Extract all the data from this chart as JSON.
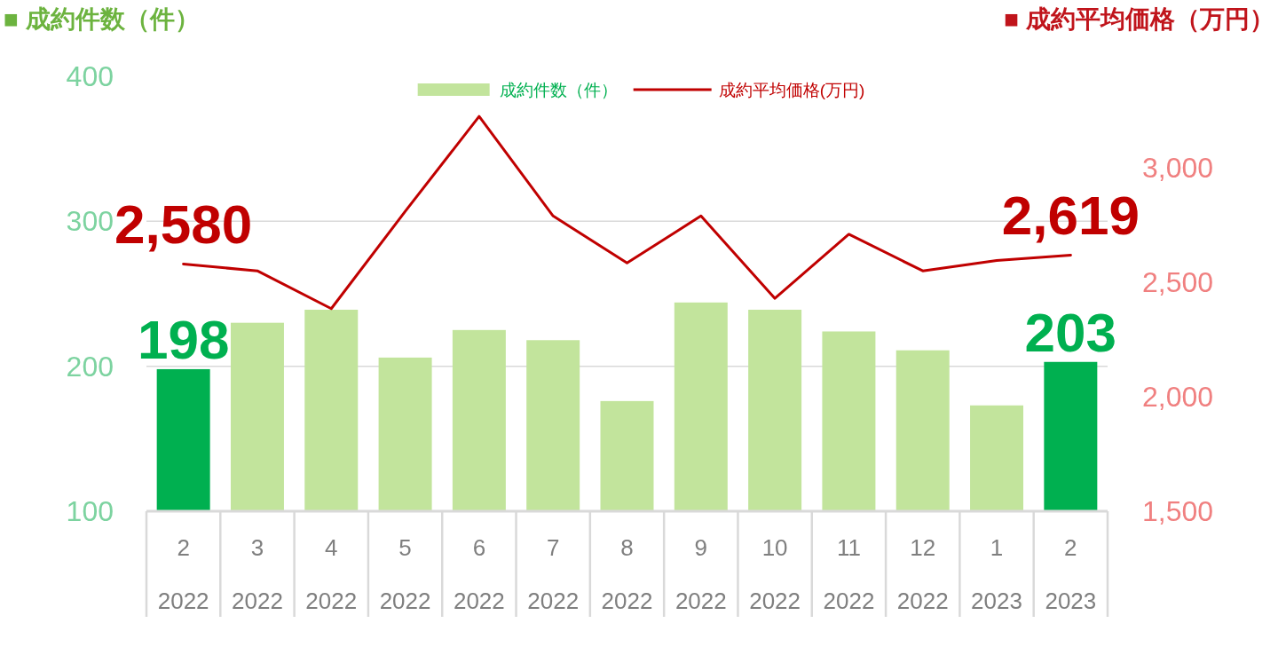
{
  "chart_data": {
    "type": "bar",
    "ylabel": "■ 成約件数（件）",
    "y2label": "■ 成約平均価格（万円）",
    "categories": [
      "2\n2022",
      "3\n2022",
      "4\n2022",
      "5\n2022",
      "6\n2022",
      "7\n2022",
      "8\n2022",
      "9\n2022",
      "10\n2022",
      "11\n2022",
      "12\n2022",
      "1\n2023",
      "2\n2023"
    ],
    "series": [
      {
        "name": "成約件数（件）",
        "color": "#c2e49c",
        "colors": [
          "#00b050",
          "#c2e49c",
          "#c2e49c",
          "#c2e49c",
          "#c2e49c",
          "#c2e49c",
          "#c2e49c",
          "#c2e49c",
          "#c2e49c",
          "#c2e49c",
          "#c2e49c",
          "#c2e49c",
          "#00b050"
        ],
        "values": [
          198,
          230,
          239,
          206,
          225,
          218,
          176,
          244,
          239,
          224,
          211,
          173,
          203
        ],
        "value_labels": [
          "198",
          null,
          null,
          null,
          null,
          null,
          null,
          null,
          null,
          null,
          null,
          null,
          "203"
        ]
      },
      {
        "name": "成約平均価格(万円)",
        "type": "line",
        "axis": "y2",
        "color": "#c00000",
        "values": [
          2580,
          2550,
          2385,
          2810,
          3225,
          2790,
          2585,
          2790,
          2430,
          2710,
          2550,
          2595,
          2619
        ],
        "value_labels": [
          "2,580",
          null,
          null,
          null,
          null,
          null,
          null,
          null,
          null,
          null,
          null,
          null,
          "2,619"
        ]
      }
    ],
    "ylim": [
      100,
      400
    ],
    "yticks": [
      100,
      200,
      300,
      400
    ],
    "y2lim": [
      1500,
      3400
    ],
    "y2ticks": [
      {
        "value": 1500,
        "label": "1,500"
      },
      {
        "value": 2000,
        "label": "2,000"
      },
      {
        "value": 2500,
        "label": "2,500"
      },
      {
        "value": 3000,
        "label": "3,000"
      }
    ],
    "grid": "y",
    "legend": "top"
  }
}
